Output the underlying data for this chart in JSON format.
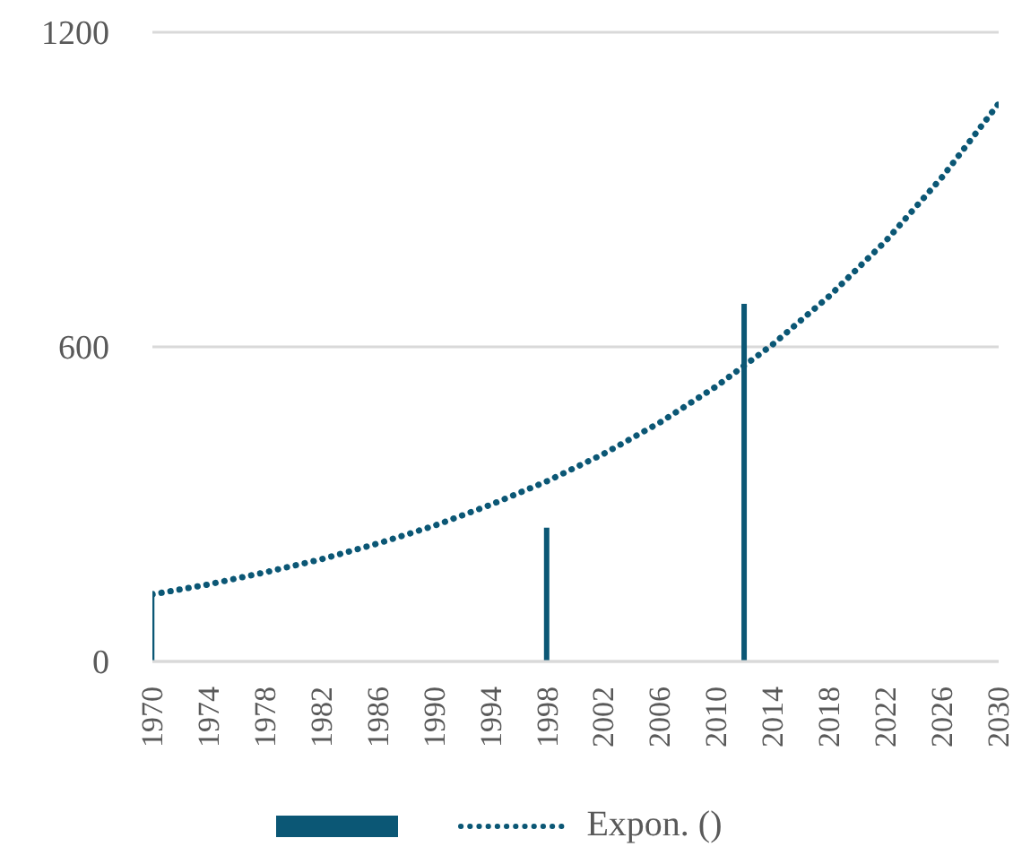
{
  "chart_data": {
    "type": "bar",
    "x": [
      1970,
      1998,
      2012
    ],
    "series": [
      {
        "color": "#0b5775",
        "values": [
          134,
          255,
          682
        ]
      },
      {
        "type": "line",
        "name": "Expon. ()",
        "color": "#0b5775",
        "line_style": "dotted",
        "x": [
          1970,
          1974,
          1978,
          1982,
          1986,
          1990,
          1994,
          1998,
          2002,
          2006,
          2010,
          2014,
          2018,
          2022,
          2026,
          2030
        ],
        "values": [
          128,
          147,
          170,
          195,
          225,
          259,
          299,
          344,
          396,
          456,
          525,
          605,
          697,
          802,
          924,
          1064
        ]
      }
    ],
    "xlim": [
      1970,
      2030
    ],
    "xticks": [
      1970,
      1974,
      1978,
      1982,
      1986,
      1990,
      1994,
      1998,
      2002,
      2006,
      2010,
      2014,
      2018,
      2022,
      2026,
      2030
    ],
    "ylim": [
      0,
      1200
    ],
    "yticks": [
      0,
      600,
      1200
    ],
    "grid": "y",
    "legend": "bottom"
  }
}
